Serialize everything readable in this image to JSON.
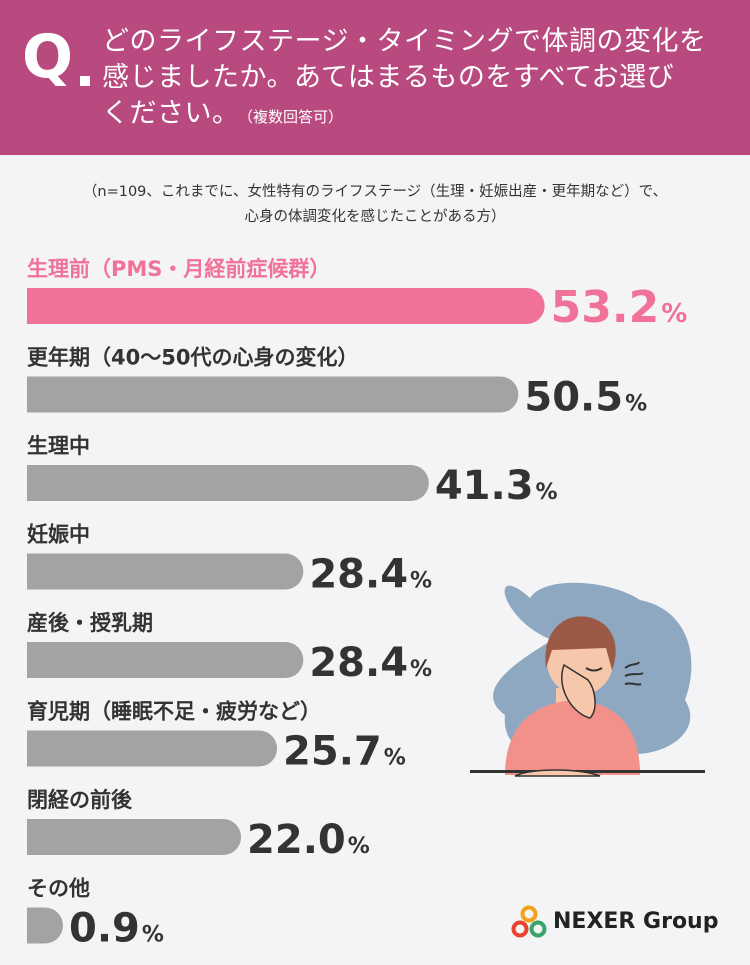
{
  "question": {
    "letter": "Q",
    "line1": "どのライフステージ・タイミングで体調の変化を",
    "line2": "感じましたか。あてはまるものをすべてお選び",
    "line3": "ください。",
    "note": "（複数回答可）"
  },
  "notes": {
    "line1": "（n=109、これまでに、女性特有のライフステージ（生理・妊娠出産・更年期など）で、",
    "line2": "心身の体調変化を感じたことがある方）"
  },
  "chart_data": {
    "type": "bar",
    "orientation": "horizontal",
    "unit": "%",
    "categories": [
      "生理前（PMS・月経前症候群）",
      "更年期（40〜50代の心身の変化）",
      "生理中",
      "妊娠中",
      "産後・授乳期",
      "育児期（睡眠不足・疲労など）",
      "閉経の前後",
      "その他"
    ],
    "values": [
      53.2,
      50.5,
      41.3,
      28.4,
      28.4,
      25.7,
      22.0,
      0.9
    ],
    "value_labels": [
      "53.2",
      "50.5",
      "41.3",
      "28.4",
      "28.4",
      "25.7",
      "22.0",
      "0.9"
    ],
    "highlight_index": 0,
    "colors": {
      "highlight": "#f07298",
      "default": "#a3a3a5",
      "highlight_text": "#f07298",
      "default_text": "#333333"
    }
  },
  "colors": {
    "header_bg": "#b84a7f",
    "page_bg": "#f4f4f6"
  },
  "logo": {
    "text": "NEXER Group",
    "icon": "nexer-logo-icon"
  },
  "illustration": {
    "icon": "tired-woman-illustration"
  }
}
